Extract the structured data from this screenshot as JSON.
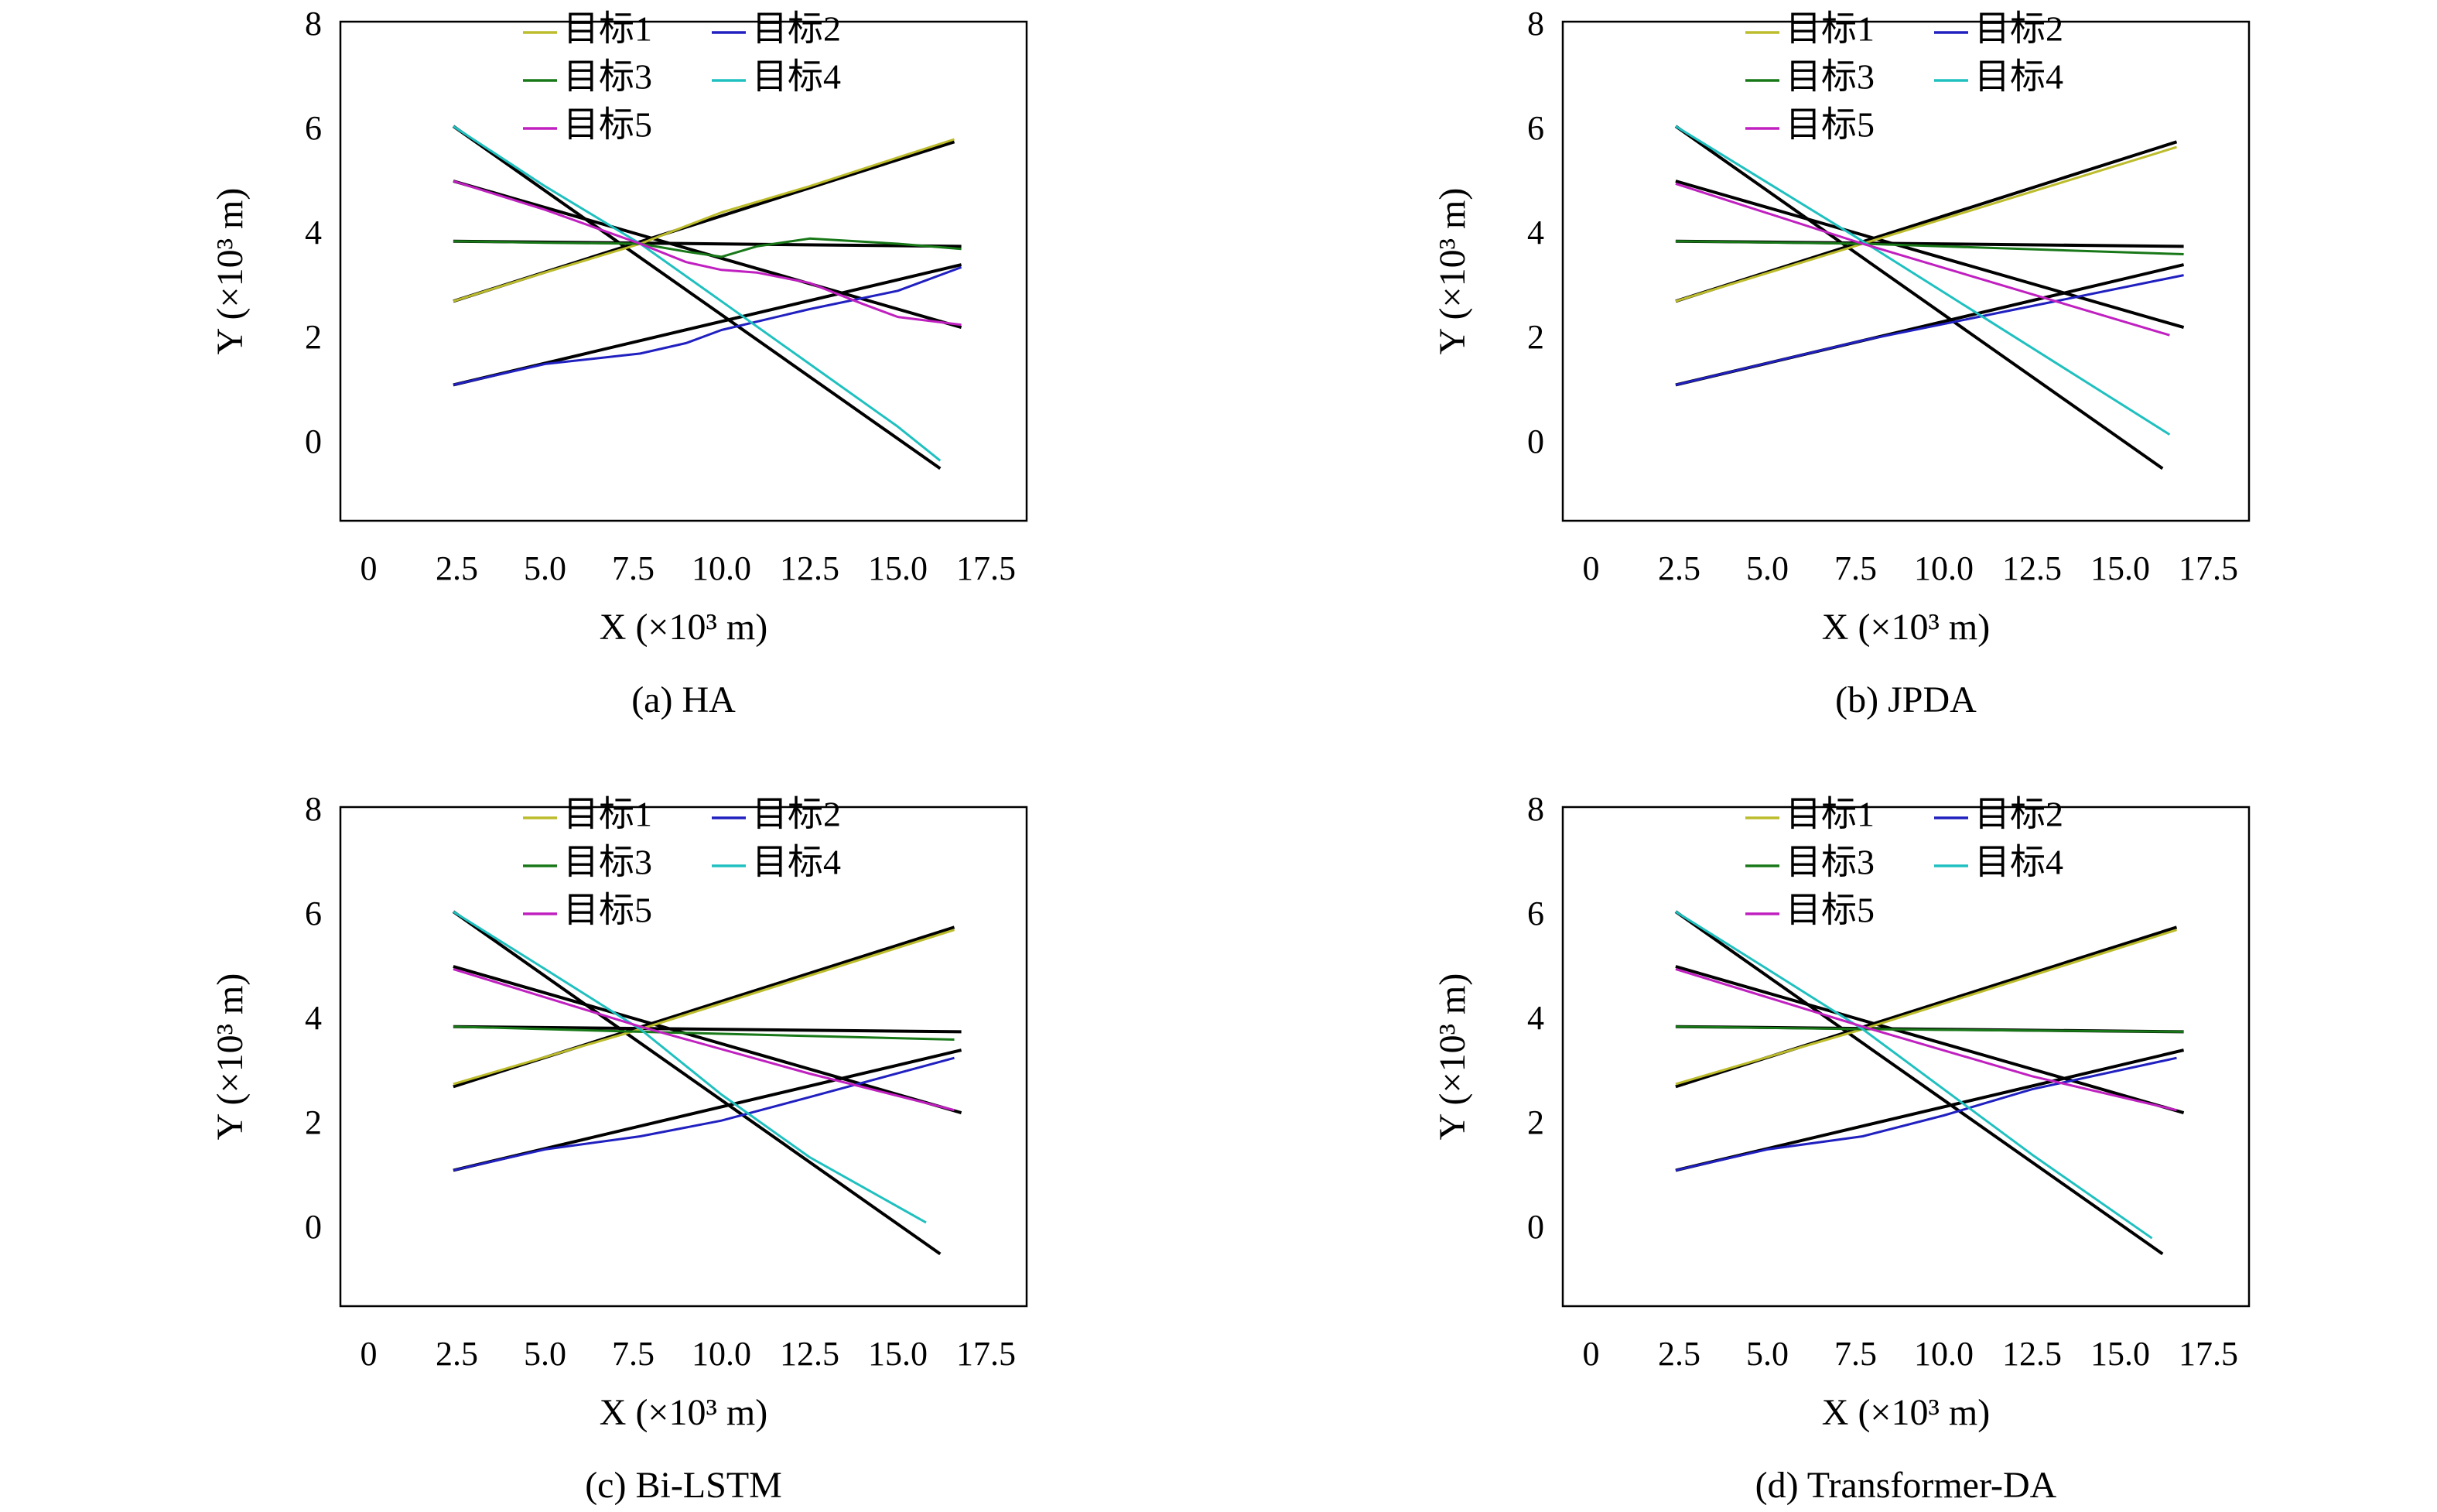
{
  "chart_data": [
    {
      "type": "line",
      "caption": "(a) HA",
      "xlabel": "X (×10³ m)",
      "ylabel": "Y (×10³ m)",
      "xlim": [
        -0.8,
        18.65
      ],
      "ylim": [
        -1.45,
        8.1
      ],
      "xticks": [
        0,
        2.5,
        {
          "value": 5,
          "label": "5.0"
        },
        7.5,
        {
          "value": 10,
          "label": "10.0"
        },
        12.5,
        {
          "value": 15,
          "label": "15.0"
        },
        17.5
      ],
      "yticks": [
        0,
        2,
        4,
        6,
        8
      ],
      "legend": "top",
      "series": [
        {
          "color": "#000000",
          "x": [
            2.4,
            16.6
          ],
          "y": [
            2.75,
            5.8
          ]
        },
        {
          "color": "#000000",
          "x": [
            2.4,
            16.8
          ],
          "y": [
            1.15,
            3.45
          ]
        },
        {
          "color": "#000000",
          "x": [
            2.4,
            16.8
          ],
          "y": [
            3.9,
            3.8
          ]
        },
        {
          "color": "#000000",
          "x": [
            2.4,
            16.2
          ],
          "y": [
            6.1,
            -0.45
          ]
        },
        {
          "color": "#000000",
          "x": [
            2.4,
            16.8
          ],
          "y": [
            5.05,
            2.25
          ]
        },
        {
          "name": "目标1",
          "color": "#bcbc2c",
          "x": [
            2.4,
            5,
            7.7,
            10,
            12.5,
            15,
            16.6
          ],
          "y": [
            2.75,
            3.3,
            3.85,
            4.45,
            4.95,
            5.5,
            5.85
          ]
        },
        {
          "name": "目标2",
          "color": "#2020c0",
          "x": [
            2.4,
            5,
            7.7,
            9,
            10,
            12.5,
            15,
            16.8
          ],
          "y": [
            1.15,
            1.55,
            1.75,
            1.95,
            2.2,
            2.6,
            2.95,
            3.4
          ]
        },
        {
          "name": "目标3",
          "color": "#187818",
          "x": [
            2.4,
            5,
            7.7,
            9,
            10,
            11,
            12.5,
            15,
            16.8
          ],
          "y": [
            3.9,
            3.87,
            3.85,
            3.7,
            3.6,
            3.8,
            3.95,
            3.85,
            3.75
          ]
        },
        {
          "name": "目标4",
          "color": "#20c0c0",
          "x": [
            2.4,
            5,
            7.7,
            10,
            12.5,
            15,
            16.2
          ],
          "y": [
            6.1,
            4.95,
            3.85,
            2.75,
            1.55,
            0.35,
            -0.3
          ]
        },
        {
          "name": "目标5",
          "color": "#c020c0",
          "x": [
            2.4,
            5,
            7.7,
            9,
            10,
            11,
            12.5,
            14,
            15,
            16.8
          ],
          "y": [
            5.05,
            4.5,
            3.85,
            3.5,
            3.35,
            3.3,
            3.1,
            2.7,
            2.45,
            2.3
          ]
        }
      ]
    },
    {
      "type": "line",
      "caption": "(b) JPDA",
      "xlabel": "X (×10³ m)",
      "ylabel": "Y (×10³ m)",
      "xlim": [
        -0.8,
        18.65
      ],
      "ylim": [
        -1.45,
        8.1
      ],
      "xticks": [
        0,
        2.5,
        {
          "value": 5,
          "label": "5.0"
        },
        7.5,
        {
          "value": 10,
          "label": "10.0"
        },
        12.5,
        {
          "value": 15,
          "label": "15.0"
        },
        17.5
      ],
      "yticks": [
        0,
        2,
        4,
        6,
        8
      ],
      "legend": "top",
      "series": [
        {
          "color": "#000000",
          "x": [
            2.4,
            16.6
          ],
          "y": [
            2.75,
            5.8
          ]
        },
        {
          "color": "#000000",
          "x": [
            2.4,
            16.8
          ],
          "y": [
            1.15,
            3.45
          ]
        },
        {
          "color": "#000000",
          "x": [
            2.4,
            16.8
          ],
          "y": [
            3.9,
            3.8
          ]
        },
        {
          "color": "#000000",
          "x": [
            2.4,
            16.2
          ],
          "y": [
            6.1,
            -0.45
          ]
        },
        {
          "color": "#000000",
          "x": [
            2.4,
            16.8
          ],
          "y": [
            5.05,
            2.25
          ]
        },
        {
          "name": "目标1",
          "color": "#bcbc2c",
          "x": [
            2.4,
            7.7,
            16.6
          ],
          "y": [
            2.75,
            3.85,
            5.7
          ]
        },
        {
          "name": "目标2",
          "color": "#2020c0",
          "x": [
            2.4,
            7.7,
            16.8
          ],
          "y": [
            1.15,
            2.0,
            3.25
          ]
        },
        {
          "name": "目标3",
          "color": "#187818",
          "x": [
            2.4,
            7.7,
            16.8
          ],
          "y": [
            3.9,
            3.85,
            3.65
          ]
        },
        {
          "name": "目标4",
          "color": "#20c0c0",
          "x": [
            2.4,
            7.7,
            16.4
          ],
          "y": [
            6.1,
            3.9,
            0.2
          ]
        },
        {
          "name": "目标5",
          "color": "#c020c0",
          "x": [
            2.4,
            7.7,
            16.4
          ],
          "y": [
            5.0,
            3.85,
            2.1
          ]
        }
      ]
    },
    {
      "type": "line",
      "caption": "(c) Bi-LSTM",
      "xlabel": "X (×10³ m)",
      "ylabel": "Y (×10³ m)",
      "xlim": [
        -0.8,
        18.65
      ],
      "ylim": [
        -1.45,
        8.1
      ],
      "xticks": [
        0,
        2.5,
        {
          "value": 5,
          "label": "5.0"
        },
        7.5,
        {
          "value": 10,
          "label": "10.0"
        },
        12.5,
        {
          "value": 15,
          "label": "15.0"
        },
        17.5
      ],
      "yticks": [
        0,
        2,
        4,
        6,
        8
      ],
      "legend": "top",
      "series": [
        {
          "color": "#000000",
          "x": [
            2.4,
            16.6
          ],
          "y": [
            2.75,
            5.8
          ]
        },
        {
          "color": "#000000",
          "x": [
            2.4,
            16.8
          ],
          "y": [
            1.15,
            3.45
          ]
        },
        {
          "color": "#000000",
          "x": [
            2.4,
            16.8
          ],
          "y": [
            3.9,
            3.8
          ]
        },
        {
          "color": "#000000",
          "x": [
            2.4,
            16.2
          ],
          "y": [
            6.1,
            -0.45
          ]
        },
        {
          "color": "#000000",
          "x": [
            2.4,
            16.8
          ],
          "y": [
            5.05,
            2.25
          ]
        },
        {
          "name": "目标1",
          "color": "#bcbc2c",
          "x": [
            2.4,
            7.7,
            16.6
          ],
          "y": [
            2.8,
            3.85,
            5.75
          ]
        },
        {
          "name": "目标2",
          "color": "#2020c0",
          "x": [
            2.4,
            5,
            7.7,
            10,
            12.5,
            16.6
          ],
          "y": [
            1.15,
            1.55,
            1.8,
            2.1,
            2.55,
            3.3
          ]
        },
        {
          "name": "目标3",
          "color": "#187818",
          "x": [
            2.4,
            7.7,
            16.6
          ],
          "y": [
            3.9,
            3.8,
            3.65
          ]
        },
        {
          "name": "目标4",
          "color": "#20c0c0",
          "x": [
            2.4,
            5,
            7.7,
            10,
            12.5,
            15.8
          ],
          "y": [
            6.1,
            5.0,
            3.85,
            2.6,
            1.4,
            0.15
          ]
        },
        {
          "name": "目标5",
          "color": "#c020c0",
          "x": [
            2.4,
            7.7,
            12.5,
            16.6
          ],
          "y": [
            5.0,
            3.9,
            3.0,
            2.3
          ]
        }
      ]
    },
    {
      "type": "line",
      "caption": "(d) Transformer-DA",
      "xlabel": "X (×10³ m)",
      "ylabel": "Y (×10³ m)",
      "xlim": [
        -0.8,
        18.65
      ],
      "ylim": [
        -1.45,
        8.1
      ],
      "xticks": [
        0,
        2.5,
        {
          "value": 5,
          "label": "5.0"
        },
        7.5,
        {
          "value": 10,
          "label": "10.0"
        },
        12.5,
        {
          "value": 15,
          "label": "15.0"
        },
        17.5
      ],
      "yticks": [
        0,
        2,
        4,
        6,
        8
      ],
      "legend": "top",
      "series": [
        {
          "color": "#000000",
          "x": [
            2.4,
            16.6
          ],
          "y": [
            2.75,
            5.8
          ]
        },
        {
          "color": "#000000",
          "x": [
            2.4,
            16.8
          ],
          "y": [
            1.15,
            3.45
          ]
        },
        {
          "color": "#000000",
          "x": [
            2.4,
            16.8
          ],
          "y": [
            3.9,
            3.8
          ]
        },
        {
          "color": "#000000",
          "x": [
            2.4,
            16.2
          ],
          "y": [
            6.1,
            -0.45
          ]
        },
        {
          "color": "#000000",
          "x": [
            2.4,
            16.8
          ],
          "y": [
            5.05,
            2.25
          ]
        },
        {
          "name": "目标1",
          "color": "#bcbc2c",
          "x": [
            2.4,
            7.7,
            16.6
          ],
          "y": [
            2.8,
            3.85,
            5.75
          ]
        },
        {
          "name": "目标2",
          "color": "#2020c0",
          "x": [
            2.4,
            5,
            7.7,
            10,
            12.5,
            16.6
          ],
          "y": [
            1.15,
            1.55,
            1.8,
            2.2,
            2.7,
            3.3
          ]
        },
        {
          "name": "目标3",
          "color": "#187818",
          "x": [
            2.4,
            7.7,
            16.8
          ],
          "y": [
            3.9,
            3.85,
            3.8
          ]
        },
        {
          "name": "目标4",
          "color": "#20c0c0",
          "x": [
            2.4,
            5,
            7.7,
            10,
            12.5,
            15.9
          ],
          "y": [
            6.1,
            5.0,
            3.85,
            2.7,
            1.45,
            -0.15
          ]
        },
        {
          "name": "目标5",
          "color": "#c020c0",
          "x": [
            2.4,
            7.7,
            12.5,
            16.6
          ],
          "y": [
            5.0,
            3.9,
            2.95,
            2.3
          ]
        }
      ]
    }
  ]
}
